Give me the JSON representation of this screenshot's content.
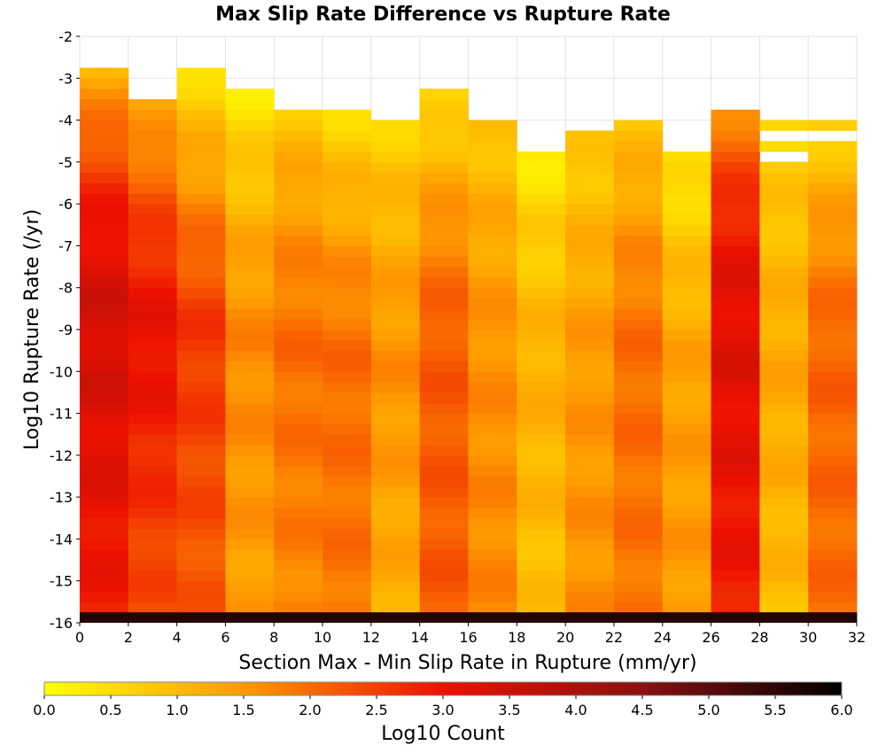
{
  "chart_data": {
    "type": "heatmap",
    "title": "Max Slip Rate Difference vs Rupture Rate",
    "xlabel": "Section Max - Min Slip Rate in Rupture (mm/yr)",
    "ylabel": "Log10 Rupture Rate (/yr)",
    "xlim": [
      0,
      32
    ],
    "ylim": [
      -16,
      -2
    ],
    "x_bin_width": 2,
    "y_bin_width": 0.25,
    "x_ticks": [
      "0",
      "2",
      "4",
      "6",
      "8",
      "10",
      "12",
      "14",
      "16",
      "18",
      "20",
      "22",
      "24",
      "26",
      "28",
      "30",
      "32"
    ],
    "y_ticks": [
      "-2",
      "-3",
      "-4",
      "-5",
      "-6",
      "-7",
      "-8",
      "-9",
      "-10",
      "-11",
      "-12",
      "-13",
      "-14",
      "-15",
      "-16"
    ],
    "grid": true,
    "colorbar": {
      "label": "Log10 Count",
      "range": [
        0,
        6
      ],
      "ticks": [
        "0.0",
        "0.5",
        "1.0",
        "1.5",
        "2.0",
        "2.5",
        "3.0",
        "3.5",
        "4.0",
        "4.5",
        "5.0",
        "5.5",
        "6.0"
      ],
      "colors": [
        "#ffff00",
        "#ff9900",
        "#ee1100",
        "#881111",
        "#000000"
      ]
    },
    "columns": [
      {
        "x_start": 0,
        "ymax": -2.75,
        "bottom": 2.9,
        "mid": 3.4,
        "top": 1.0,
        "pow": 0.5
      },
      {
        "x_start": 2,
        "ymax": -3.5,
        "bottom": 2.3,
        "mid": 3.1,
        "top": 1.1,
        "pow": 0.6
      },
      {
        "x_start": 4,
        "ymax": -2.75,
        "bottom": 2.2,
        "mid": 2.6,
        "top": 0.4,
        "pow": 0.8
      },
      {
        "x_start": 6,
        "ymax": -3.25,
        "bottom": 1.4,
        "mid": 1.7,
        "top": 0.3,
        "pow": 0.8
      },
      {
        "x_start": 8,
        "ymax": -3.75,
        "bottom": 1.7,
        "mid": 2.0,
        "top": 0.8,
        "pow": 0.7
      },
      {
        "x_start": 10,
        "ymax": -3.75,
        "bottom": 1.9,
        "mid": 2.0,
        "top": 0.5,
        "pow": 0.8
      },
      {
        "x_start": 12,
        "ymax": -4.0,
        "bottom": 1.2,
        "mid": 1.6,
        "top": 0.6,
        "pow": 0.8
      },
      {
        "x_start": 14,
        "ymax": -3.25,
        "bottom": 2.2,
        "mid": 2.2,
        "top": 0.4,
        "pow": 0.7
      },
      {
        "x_start": 16,
        "ymax": -4.0,
        "bottom": 1.7,
        "mid": 1.6,
        "top": 0.8,
        "pow": 0.7
      },
      {
        "x_start": 18,
        "ymax": -4.75,
        "bottom": 0.9,
        "mid": 1.2,
        "top": 0.3,
        "pow": 0.8
      },
      {
        "x_start": 20,
        "ymax": -4.25,
        "bottom": 1.6,
        "mid": 1.5,
        "top": 0.7,
        "pow": 0.8
      },
      {
        "x_start": 22,
        "ymax": -4.0,
        "bottom": 1.9,
        "mid": 2.0,
        "top": 0.8,
        "pow": 0.7
      },
      {
        "x_start": 24,
        "ymax": -4.75,
        "bottom": 1.5,
        "mid": 1.4,
        "top": 0.3,
        "pow": 0.8
      },
      {
        "x_start": 26,
        "ymax": -3.75,
        "bottom": 2.9,
        "mid": 3.2,
        "top": 1.5,
        "pow": 0.4
      },
      {
        "x_start": 28,
        "ymax": -4.0,
        "bottom": 1.0,
        "mid": 1.3,
        "top": 0.6,
        "pow": 0.9
      },
      {
        "x_start": 30,
        "ymax": -4.0,
        "bottom": 2.0,
        "mid": 2.1,
        "top": 0.5,
        "pow": 0.6
      }
    ],
    "missing_cells": [
      {
        "x_start": 18,
        "y_start": -3.5
      },
      {
        "x_start": 18,
        "y_start": -3.75
      },
      {
        "x_start": 18,
        "y_start": -4.0
      },
      {
        "x_start": 18,
        "y_start": -4.25
      },
      {
        "x_start": 18,
        "y_start": -4.5
      },
      {
        "x_start": 20,
        "y_start": -4.0
      },
      {
        "x_start": 24,
        "y_start": -4.25
      },
      {
        "x_start": 24,
        "y_start": -4.5
      },
      {
        "x_start": 28,
        "y_start": -4.5
      },
      {
        "x_start": 28,
        "y_start": -5.0
      },
      {
        "x_start": 30,
        "y_start": -4.5
      }
    ],
    "bottom_row": {
      "y_start": -16.0,
      "value": 5.6
    }
  }
}
